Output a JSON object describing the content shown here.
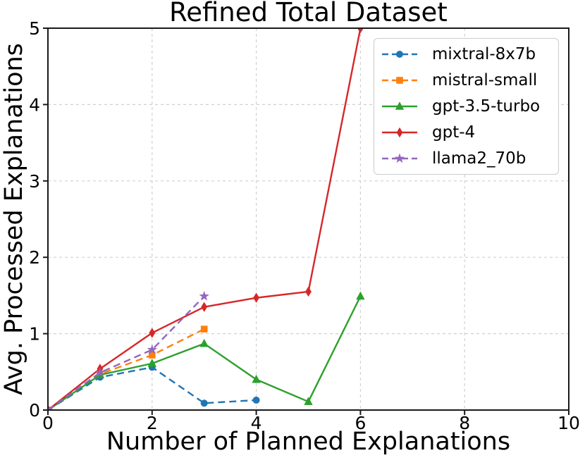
{
  "chart_data": {
    "type": "line",
    "title": "Refined Total Dataset",
    "xlabel": "Number of Planned Explanations",
    "ylabel": "Avg. Processed Explanations",
    "xlim": [
      0,
      10
    ],
    "ylim": [
      0,
      5
    ],
    "xticks": [
      0,
      2,
      4,
      6,
      8,
      10
    ],
    "yticks": [
      0,
      1,
      2,
      3,
      4,
      5
    ],
    "grid": true,
    "grid_color": "#d0d0d0",
    "legend_position": "upper right",
    "series": [
      {
        "name": "mixtral-8x7b",
        "color": "#1f77b4",
        "linestyle": "dashed",
        "marker": "circle",
        "x": [
          0,
          1,
          2,
          3,
          4
        ],
        "y": [
          0.0,
          0.43,
          0.56,
          0.09,
          0.13
        ]
      },
      {
        "name": "mistral-small",
        "color": "#ff7f0e",
        "linestyle": "dashed",
        "marker": "square",
        "x": [
          0,
          1,
          2,
          3
        ],
        "y": [
          0.0,
          0.47,
          0.72,
          1.06
        ]
      },
      {
        "name": "gpt-3.5-turbo",
        "color": "#2ca02c",
        "linestyle": "solid",
        "marker": "triangle",
        "x": [
          0,
          1,
          2,
          3,
          4,
          5,
          6
        ],
        "y": [
          0.0,
          0.46,
          0.61,
          0.87,
          0.4,
          0.11,
          1.49
        ]
      },
      {
        "name": "gpt-4",
        "color": "#d62728",
        "linestyle": "solid",
        "marker": "thin-diamond",
        "x": [
          0,
          1,
          2,
          3,
          4,
          5,
          6
        ],
        "y": [
          0.0,
          0.54,
          1.01,
          1.35,
          1.47,
          1.55,
          5.0
        ]
      },
      {
        "name": "llama2_70b",
        "color": "#9467bd",
        "linestyle": "dashed",
        "marker": "star",
        "x": [
          0,
          1,
          2,
          3
        ],
        "y": [
          0.0,
          0.49,
          0.79,
          1.49
        ]
      }
    ]
  }
}
